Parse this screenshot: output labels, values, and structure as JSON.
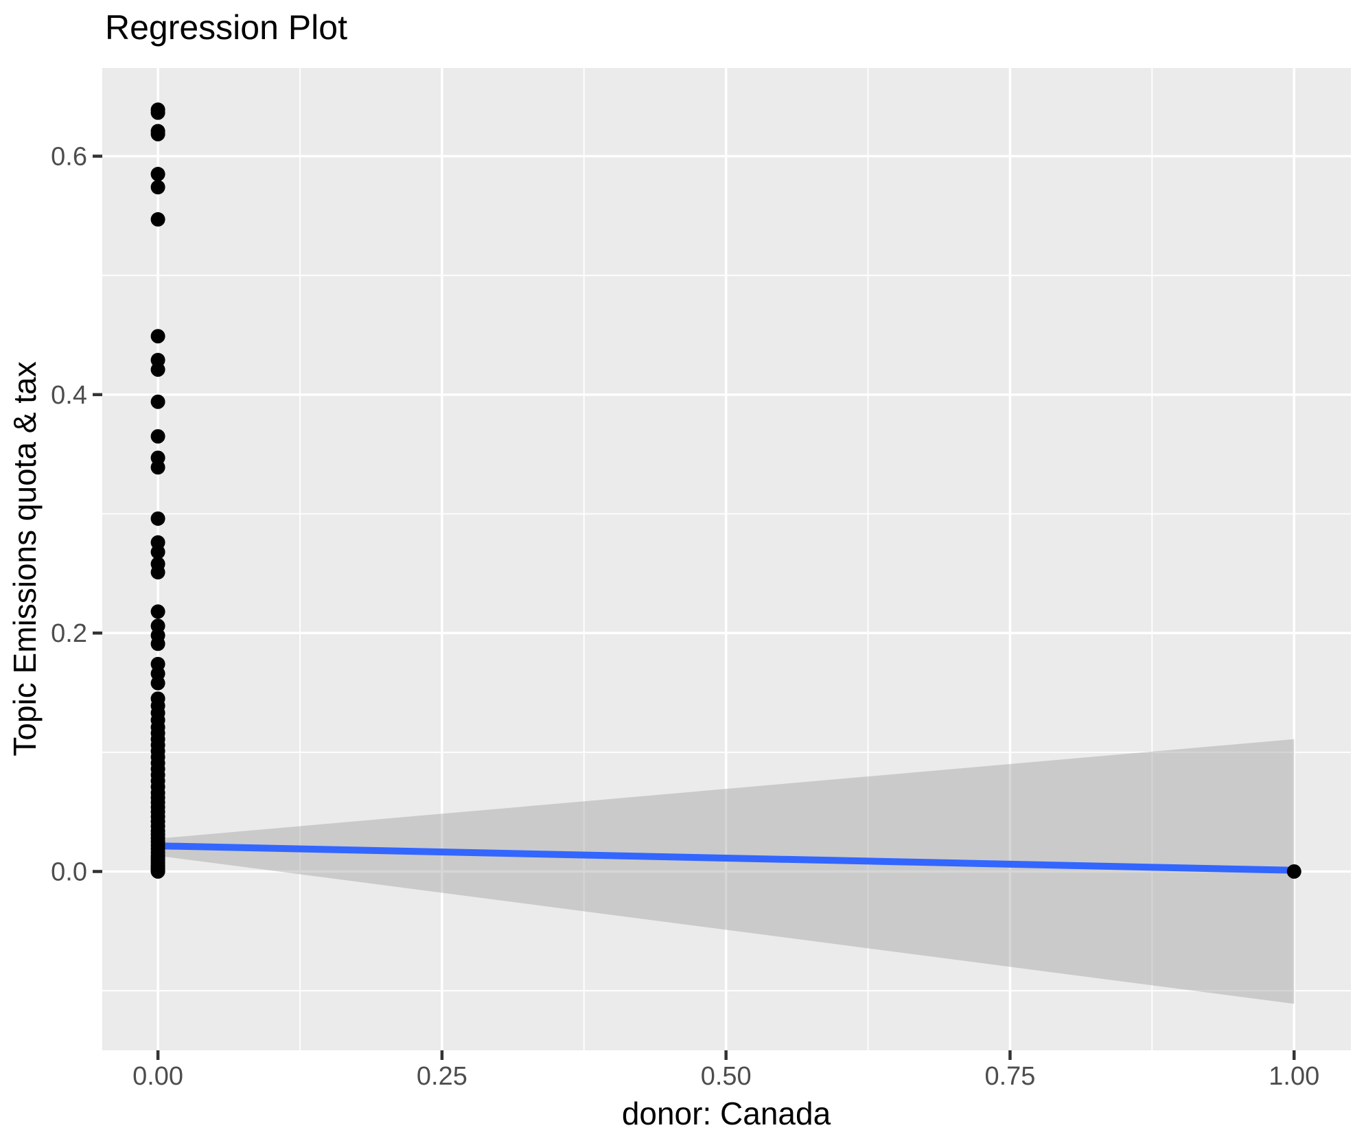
{
  "chart_data": {
    "type": "scatter",
    "title": "Regression Plot",
    "xlabel": "donor: Canada",
    "ylabel": "Topic Emissions quota & tax",
    "legend": "none",
    "grid": "white major and minor gridlines on grey panel",
    "panel_style": "ggplot2-grey",
    "xlim": [
      -0.049,
      1.05
    ],
    "ylim": [
      -0.15,
      0.674
    ],
    "x_ticks": {
      "values": [
        0.0,
        0.25,
        0.5,
        0.75,
        1.0
      ],
      "labels": [
        "0.00",
        "0.25",
        "0.50",
        "0.75",
        "1.00"
      ]
    },
    "x_minor": [
      0.125,
      0.375,
      0.625,
      0.875
    ],
    "y_ticks": {
      "values": [
        0.0,
        0.2,
        0.4,
        0.6
      ],
      "labels": [
        "0.0",
        "0.2",
        "0.4",
        "0.6"
      ]
    },
    "y_minor": [
      -0.1,
      0.1,
      0.3,
      0.5
    ],
    "points": [
      [
        0,
        0.639
      ],
      [
        0,
        0.6365
      ],
      [
        0,
        0.621
      ],
      [
        0,
        0.6185
      ],
      [
        0,
        0.585
      ],
      [
        0,
        0.574
      ],
      [
        0,
        0.547
      ],
      [
        0,
        0.449
      ],
      [
        0,
        0.429
      ],
      [
        0,
        0.421
      ],
      [
        0,
        0.394
      ],
      [
        0,
        0.365
      ],
      [
        0,
        0.347
      ],
      [
        0,
        0.339
      ],
      [
        0,
        0.296
      ],
      [
        0,
        0.276
      ],
      [
        0,
        0.268
      ],
      [
        0,
        0.258
      ],
      [
        0,
        0.251
      ],
      [
        0,
        0.218
      ],
      [
        0,
        0.206
      ],
      [
        0,
        0.198
      ],
      [
        0,
        0.191
      ],
      [
        0,
        0.174
      ],
      [
        0,
        0.166
      ],
      [
        0,
        0.158
      ],
      [
        0,
        0.145
      ],
      [
        0,
        0.139
      ],
      [
        0,
        0.133
      ],
      [
        0,
        0.127
      ],
      [
        0,
        0.121
      ],
      [
        0,
        0.116
      ],
      [
        0,
        0.111
      ],
      [
        0,
        0.106
      ],
      [
        0,
        0.101
      ],
      [
        0,
        0.096
      ],
      [
        0,
        0.091
      ],
      [
        0,
        0.086
      ],
      [
        0,
        0.081
      ],
      [
        0,
        0.076
      ],
      [
        0,
        0.071
      ],
      [
        0,
        0.066
      ],
      [
        0,
        0.062
      ],
      [
        0,
        0.058
      ],
      [
        0,
        0.054
      ],
      [
        0,
        0.05
      ],
      [
        0,
        0.046
      ],
      [
        0,
        0.042
      ],
      [
        0,
        0.038
      ],
      [
        0,
        0.034
      ],
      [
        0,
        0.031
      ],
      [
        0,
        0.028
      ],
      [
        0,
        0.025
      ],
      [
        0,
        0.022
      ],
      [
        0,
        0.019
      ],
      [
        0,
        0.016
      ],
      [
        0,
        0.013
      ],
      [
        0,
        0.011
      ],
      [
        0,
        0.009
      ],
      [
        0,
        0.007
      ],
      [
        0,
        0.005
      ],
      [
        0,
        0.004
      ],
      [
        0,
        0.003
      ],
      [
        0,
        0.002
      ],
      [
        0,
        0.001
      ],
      [
        0,
        0.0
      ],
      [
        1,
        0.0
      ]
    ],
    "regression_line": {
      "x": [
        0,
        1
      ],
      "y": [
        0.0215,
        0.001
      ]
    },
    "confidence_band": {
      "x0": 0,
      "top0": 0.0276,
      "bottom0": 0.0132,
      "x1": 1,
      "top1": 0.111,
      "bottom1": -0.111
    },
    "colors": {
      "panel_background": "#EBEBEB",
      "gridline": "#FFFFFF",
      "point": "#000000",
      "regression_line": "#3366FF",
      "confidence_band": "rgba(153,153,153,0.40)",
      "tick_label": "#4D4D4D",
      "tick_mark": "#333333",
      "title_text": "#000000"
    }
  }
}
